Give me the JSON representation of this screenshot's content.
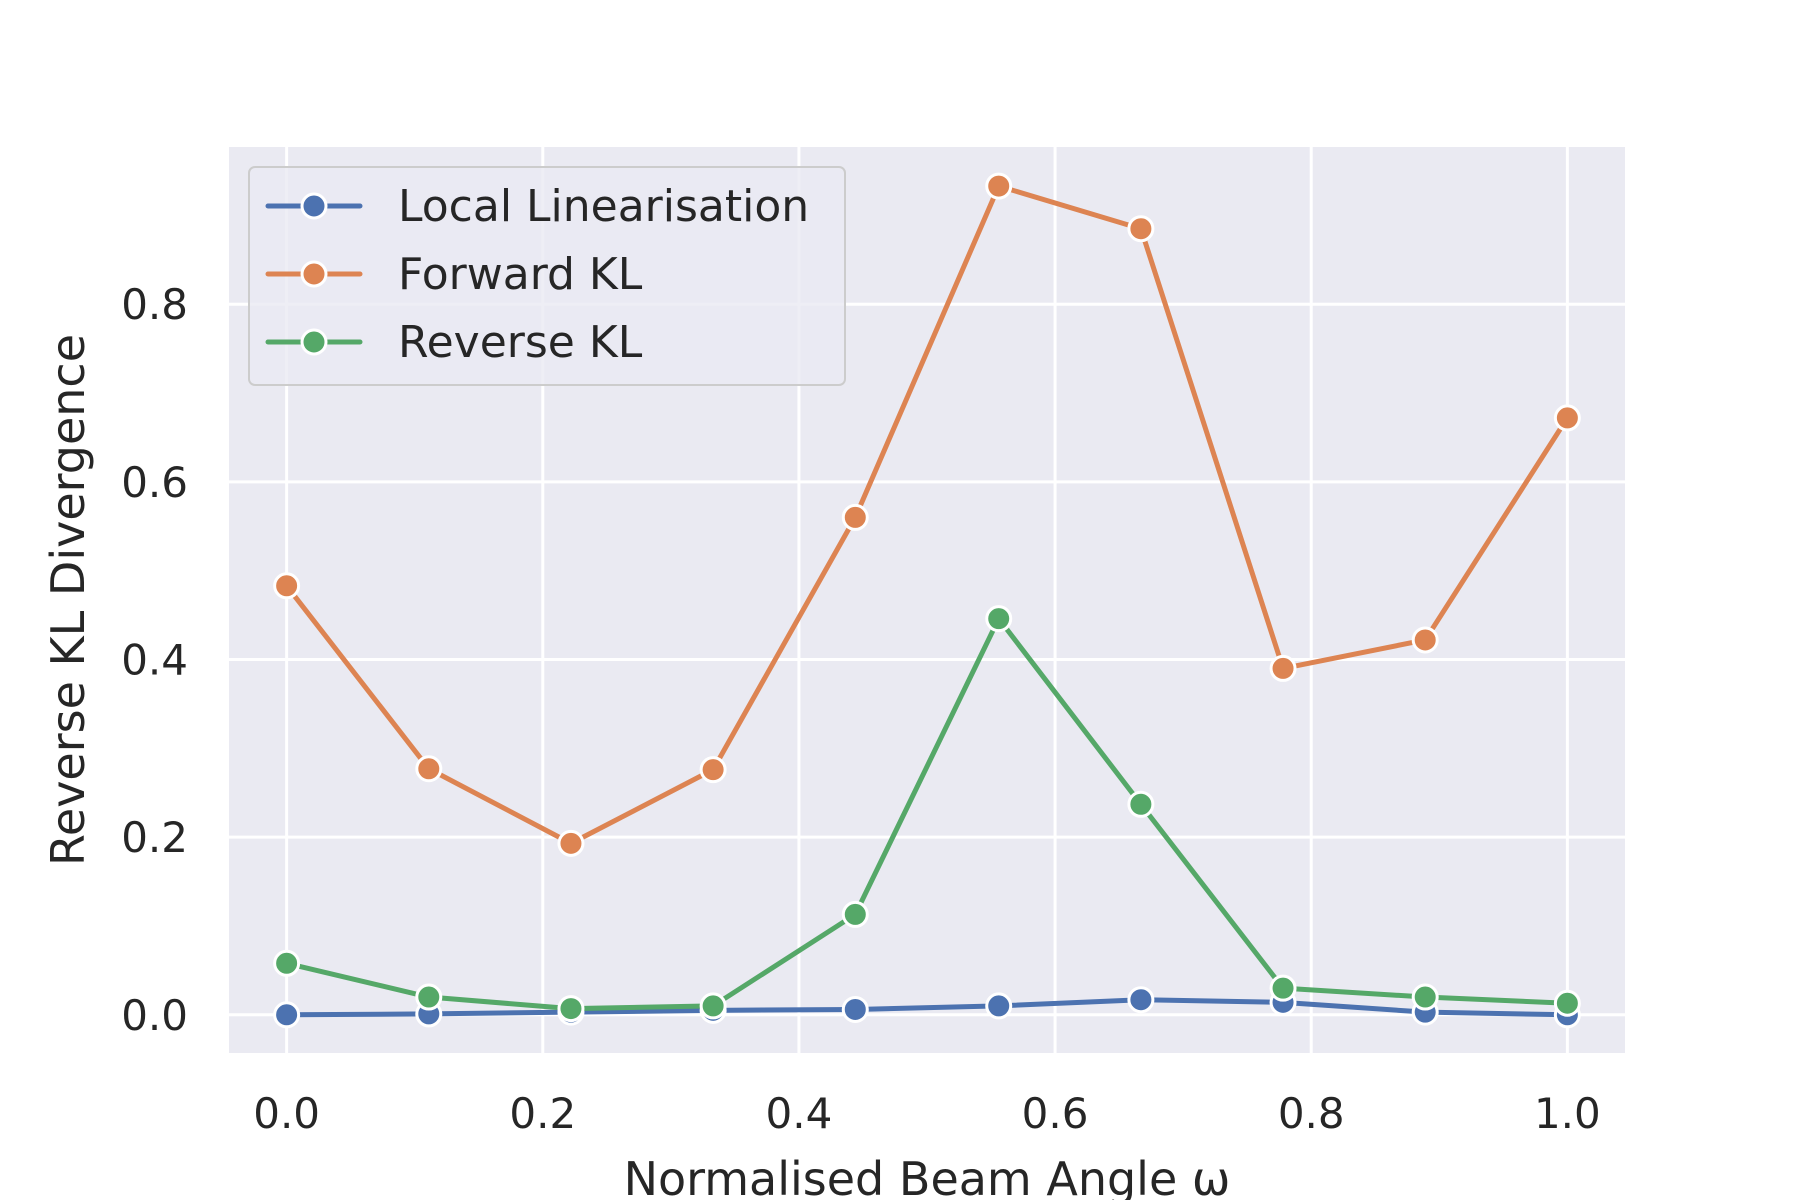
{
  "chart_data": {
    "type": "line",
    "title": "",
    "xlabel": "Normalised Beam Angle ω",
    "ylabel": "Reverse KL Divergence",
    "xlim": [
      -0.045,
      1.045
    ],
    "ylim": [
      -0.043,
      0.977
    ],
    "xticks": [
      "0.0",
      "0.2",
      "0.4",
      "0.6",
      "0.8",
      "1.0"
    ],
    "yticks": [
      "0.0",
      "0.2",
      "0.4",
      "0.6",
      "0.8"
    ],
    "grid": true,
    "legend_position": "top-left",
    "x": [
      0.0,
      0.111,
      0.222,
      0.333,
      0.444,
      0.556,
      0.667,
      0.778,
      0.889,
      1.0
    ],
    "series": [
      {
        "name": "Local Linearisation",
        "color": "#4c72b0",
        "values": [
          0.0,
          0.001,
          0.003,
          0.005,
          0.006,
          0.01,
          0.017,
          0.014,
          0.003,
          0.0
        ]
      },
      {
        "name": "Forward KL",
        "color": "#dd8452",
        "values": [
          0.483,
          0.277,
          0.193,
          0.276,
          0.56,
          0.933,
          0.885,
          0.39,
          0.422,
          0.672
        ]
      },
      {
        "name": "Reverse KL",
        "color": "#55a868",
        "values": [
          0.058,
          0.02,
          0.007,
          0.01,
          0.113,
          0.446,
          0.237,
          0.03,
          0.02,
          0.013
        ]
      }
    ]
  }
}
